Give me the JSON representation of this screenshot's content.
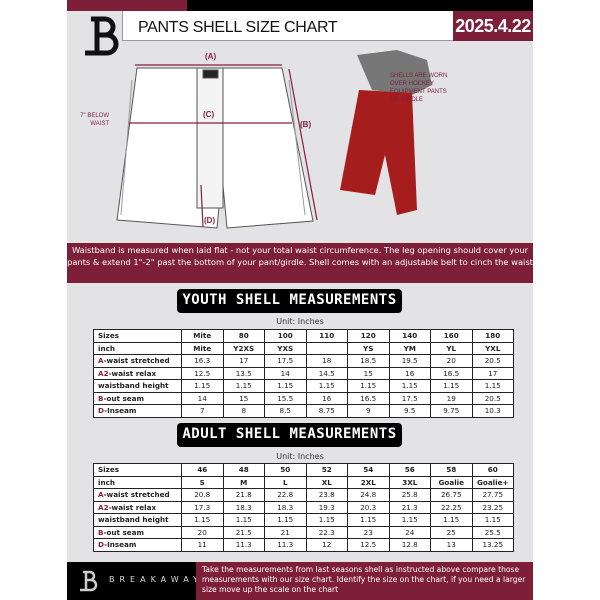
{
  "header": {
    "title": "PANTS SHELL SIZE CHART",
    "date": "2025.4.22"
  },
  "diagram": {
    "label_a": "(A)",
    "label_b": "(B)",
    "label_c": "(C)",
    "label_d": "(D)",
    "below_waist": "7\" BELOW WAIST",
    "note": "SHELLS ARE WORN OVER HOCKEY EQUIPMENT PANTS OR GIRDLE"
  },
  "info_text": "Waistband is measured when laid flat - not your total waist circumference. The leg opening should cover your pants & extend 1\"-2\" past the bottom of your pant/girdle. Shell comes with an adjustable belt to cinch the waist",
  "youth": {
    "title": "YOUTH SHELL MEASUREMENTS",
    "unit": "Unit: Inches",
    "rows": [
      {
        "prefix": "",
        "label": "Sizes",
        "values": [
          "Mite",
          "80",
          "100",
          "110",
          "120",
          "140",
          "160",
          "180"
        ]
      },
      {
        "prefix": "",
        "label": "inch",
        "values": [
          "Mite",
          "Y2XS",
          "YXS",
          "",
          "YS",
          "YM",
          "YL",
          "YXL"
        ]
      },
      {
        "prefix": "A",
        "label": "-waist stretched",
        "values": [
          "16.3",
          "17",
          "17.5",
          "18",
          "18.5",
          "19.5",
          "20",
          "20.5"
        ]
      },
      {
        "prefix": "A2",
        "label": "-waist relax",
        "values": [
          "12.5",
          "13.5",
          "14",
          "14.5",
          "15",
          "16",
          "16.5",
          "17"
        ]
      },
      {
        "prefix": "",
        "label": "waistband height",
        "values": [
          "1.15",
          "1.15",
          "1.15",
          "1.15",
          "1.15",
          "1.15",
          "1.15",
          "1.15"
        ]
      },
      {
        "prefix": "B",
        "label": "-out seam",
        "values": [
          "14",
          "15",
          "15.5",
          "16",
          "16.5",
          "17.5",
          "19",
          "20.5"
        ]
      },
      {
        "prefix": "D",
        "label": "-Inseam",
        "values": [
          "7",
          "8",
          "8.5",
          "8.75",
          "9",
          "9.5",
          "9.75",
          "10.3"
        ]
      }
    ]
  },
  "adult": {
    "title": "ADULT SHELL MEASUREMENTS",
    "unit": "Unit: Inches",
    "rows": [
      {
        "prefix": "",
        "label": "Sizes",
        "values": [
          "46",
          "48",
          "50",
          "52",
          "54",
          "56",
          "58",
          "60"
        ]
      },
      {
        "prefix": "",
        "label": "inch",
        "values": [
          "S",
          "M",
          "L",
          "XL",
          "2XL",
          "3XL",
          "Goalie",
          "Goalie+"
        ]
      },
      {
        "prefix": "A",
        "label": "-waist stretched",
        "values": [
          "20.8",
          "21.8",
          "22.8",
          "23.8",
          "24.8",
          "25.8",
          "26.75",
          "27.75"
        ]
      },
      {
        "prefix": "A2",
        "label": "-waist relax",
        "values": [
          "17.3",
          "18.3",
          "18.3",
          "19.3",
          "20.3",
          "21.3",
          "22.25",
          "23.25"
        ]
      },
      {
        "prefix": "",
        "label": "waistband height",
        "values": [
          "1.15",
          "1.15",
          "1.15",
          "1.15",
          "1.15",
          "1.15",
          "1.15",
          "1.15"
        ]
      },
      {
        "prefix": "B",
        "label": "-out seam",
        "values": [
          "20",
          "21.5",
          "21",
          "22.3",
          "23",
          "24",
          "25",
          "25.5"
        ]
      },
      {
        "prefix": "D",
        "label": "-Inseam",
        "values": [
          "11",
          "11.3",
          "11.3",
          "12",
          "12.5",
          "12.8",
          "13",
          "13.25"
        ]
      }
    ]
  },
  "footer": {
    "brand": "BREAKAWAY",
    "text": "Take the measurements from last seasons shell as instructed above compare those measurements  with our size chart. Identify the size on the chart, if you need a larger size move up the scale on the chart"
  },
  "colors": {
    "maroon": "#7e1f3a",
    "black": "#000000"
  }
}
